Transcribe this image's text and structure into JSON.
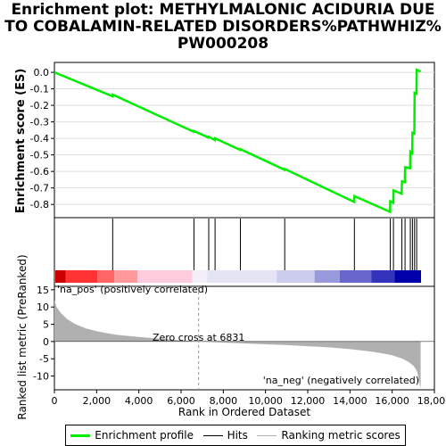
{
  "title_lines": [
    "Enrichment plot: METHYLMALONIC ACIDURIA DUE",
    "TO COBALAMIN-RELATED DISORDERS%PATHWHIZ%",
    "PW000208"
  ],
  "colors": {
    "enrichment_line": "#00ee00",
    "hits": "#000000",
    "metric_fill": "#b0b0b0",
    "pos_label": "#dd0000",
    "neg_label": "#0000cc",
    "zero_cross_line": "#999999"
  },
  "chart_data": [
    {
      "type": "line",
      "name": "enrichment-profile",
      "ylabel": "Enrichment score (ES)",
      "xlim": [
        0,
        18000
      ],
      "ylim": [
        -0.88,
        0.06
      ],
      "yticks": [
        0.0,
        -0.1,
        -0.2,
        -0.3,
        -0.4,
        -0.5,
        -0.6,
        -0.7,
        -0.8
      ],
      "ytick_labels": [
        "0.0",
        "-0.1",
        "-0.2",
        "-0.3",
        "-0.4",
        "-0.5",
        "-0.6",
        "-0.7",
        "-0.8"
      ],
      "grid": true,
      "x": [
        0,
        2750,
        2760,
        6600,
        6610,
        7300,
        7310,
        7600,
        7610,
        8800,
        8810,
        10900,
        10910,
        14200,
        14210,
        15900,
        15910,
        16050,
        16060,
        16450,
        16460,
        16600,
        16610,
        16850,
        16860,
        16950,
        16960,
        17050,
        17060,
        17150,
        17160,
        17350
      ],
      "values": [
        0.0,
        -0.145,
        -0.135,
        -0.36,
        -0.355,
        -0.395,
        -0.39,
        -0.41,
        -0.4,
        -0.47,
        -0.465,
        -0.59,
        -0.585,
        -0.785,
        -0.75,
        -0.845,
        -0.78,
        -0.79,
        -0.715,
        -0.735,
        -0.66,
        -0.665,
        -0.575,
        -0.58,
        -0.48,
        -0.49,
        -0.365,
        -0.37,
        -0.125,
        -0.13,
        0.015,
        0.005
      ]
    },
    {
      "type": "hits",
      "name": "hits",
      "x": [
        2760,
        6610,
        7310,
        7610,
        8810,
        10910,
        14210,
        15910,
        16060,
        16460,
        16610,
        16860,
        16960,
        17060,
        17160
      ]
    },
    {
      "type": "heatmap",
      "name": "ranking-colorbar",
      "xlim": [
        0,
        17350
      ],
      "segments": [
        {
          "x0": 0,
          "x1": 500,
          "color": "#cc0000"
        },
        {
          "x0": 500,
          "x1": 2000,
          "color": "#ff3333"
        },
        {
          "x0": 2000,
          "x1": 2800,
          "color": "#ff6666"
        },
        {
          "x0": 2800,
          "x1": 3900,
          "color": "#ff9999"
        },
        {
          "x0": 3900,
          "x1": 6500,
          "color": "#ffccdd"
        },
        {
          "x0": 6500,
          "x1": 7200,
          "color": "#f4eef8"
        },
        {
          "x0": 7200,
          "x1": 10500,
          "color": "#e4e4f4"
        },
        {
          "x0": 10500,
          "x1": 12300,
          "color": "#ccccee"
        },
        {
          "x0": 12300,
          "x1": 13500,
          "color": "#9999dd"
        },
        {
          "x0": 13500,
          "x1": 15000,
          "color": "#6666cc"
        },
        {
          "x0": 15000,
          "x1": 16100,
          "color": "#3333bb"
        },
        {
          "x0": 16100,
          "x1": 17350,
          "color": "#0000aa"
        }
      ]
    },
    {
      "type": "area",
      "name": "ranked-list-metric",
      "xlabel": "Rank in Ordered Dataset",
      "ylabel": "Ranked list metric (PreRanked)",
      "xlim": [
        0,
        18000
      ],
      "ylim": [
        -14,
        16
      ],
      "xticks": [
        0,
        2000,
        4000,
        6000,
        8000,
        10000,
        12000,
        14000,
        16000,
        18000
      ],
      "xtick_labels": [
        "0",
        "2,000",
        "4,000",
        "6,000",
        "8,000",
        "10,000",
        "12,000",
        "14,000",
        "16,000",
        "18,000"
      ],
      "yticks": [
        15,
        10,
        5,
        0,
        -5,
        -10
      ],
      "ytick_labels": [
        "15",
        "10",
        "5",
        "0",
        "-5",
        "-10"
      ],
      "x": [
        0,
        100,
        300,
        600,
        1000,
        1500,
        2000,
        2500,
        3000,
        4000,
        5000,
        6000,
        6831,
        8000,
        9000,
        10000,
        11000,
        12000,
        13000,
        14000,
        15000,
        15500,
        16000,
        16500,
        16800,
        17000,
        17100,
        17200,
        17250,
        17350
      ],
      "values": [
        12,
        10,
        8.3,
        6.5,
        5.0,
        3.8,
        3.0,
        2.4,
        1.9,
        1.3,
        0.8,
        0.35,
        0,
        -0.3,
        -0.55,
        -0.8,
        -1.05,
        -1.35,
        -1.7,
        -2.2,
        -2.9,
        -3.4,
        -4.0,
        -5.0,
        -6.0,
        -7.0,
        -7.8,
        -9.0,
        -11.0,
        -13.5
      ],
      "zero_cross": 6831,
      "zero_cross_label": "Zero cross at 6831",
      "pos_label": "'na_pos' (positively correlated)",
      "neg_label": "'na_neg' (negatively correlated)"
    }
  ],
  "legend": {
    "items": [
      {
        "label": "Enrichment profile",
        "color": "#00ee00"
      },
      {
        "label": "Hits",
        "color": "#000000"
      },
      {
        "label": "Ranking metric scores",
        "color": "#b0b0b0"
      }
    ]
  }
}
